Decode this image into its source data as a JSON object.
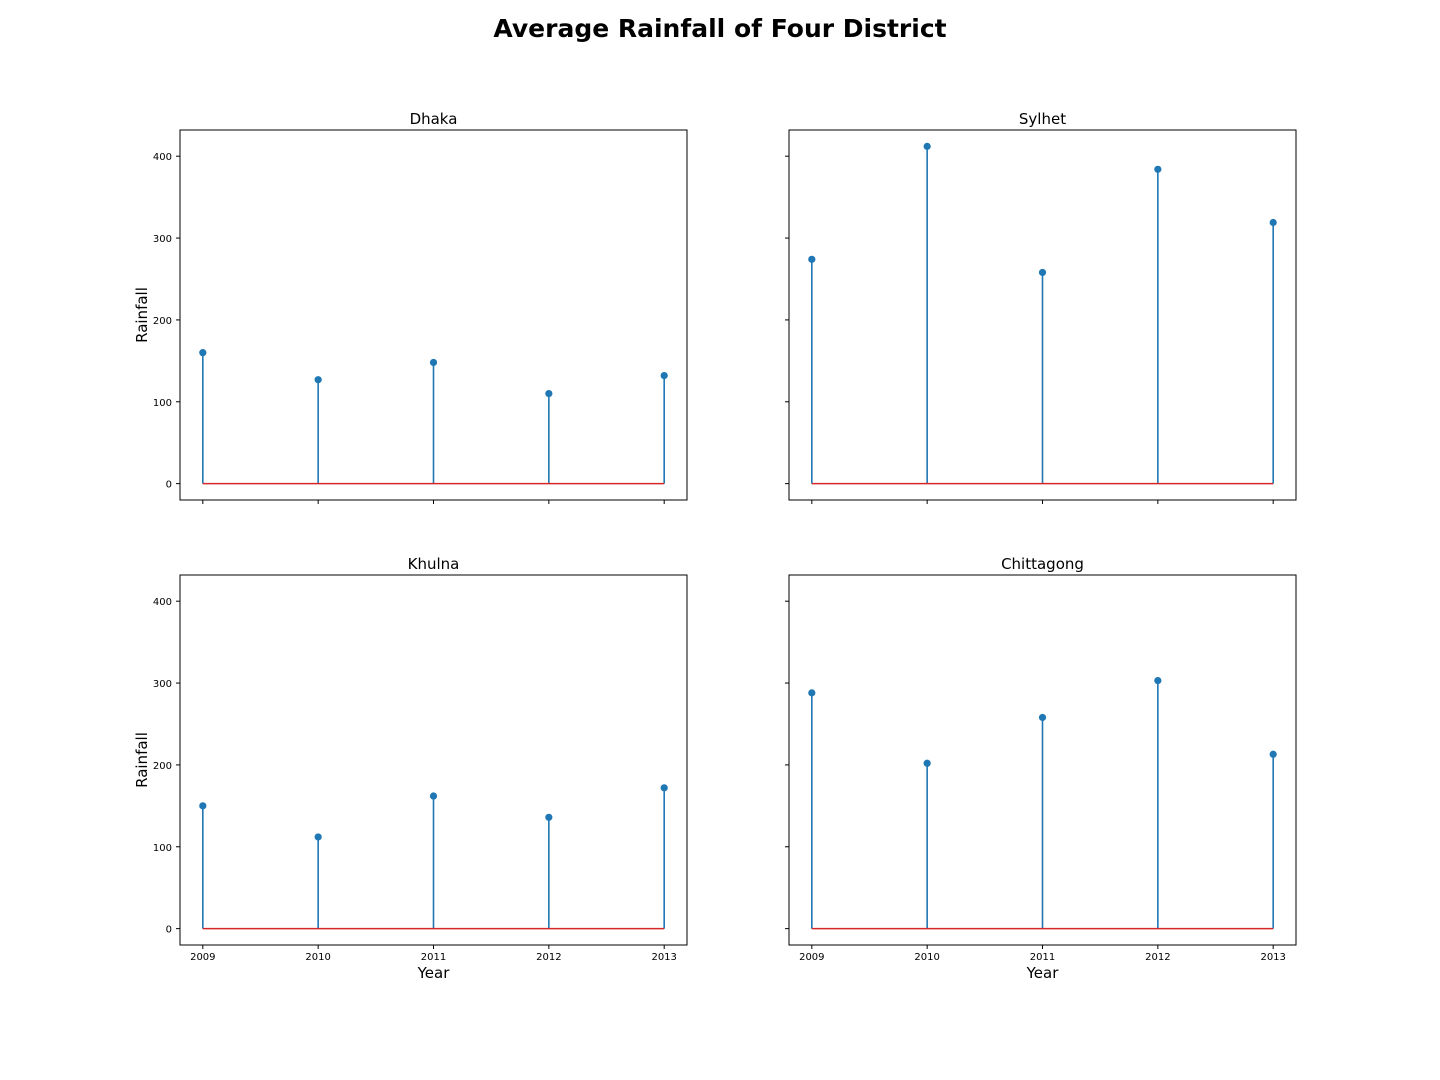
{
  "suptitle": "Average Rainfall of Four District",
  "chart_data": [
    {
      "type": "stem",
      "title": "Dhaka",
      "xlabel": "",
      "ylabel": "Rainfall",
      "x": [
        "2009",
        "2010",
        "2011",
        "2012",
        "2013"
      ],
      "values": [
        160,
        127,
        148,
        110,
        132
      ],
      "ylim": [
        -20,
        432
      ],
      "yticks": [
        0,
        100,
        200,
        300,
        400
      ],
      "show_xticklabels": false,
      "show_yticklabels": true
    },
    {
      "type": "stem",
      "title": "Sylhet",
      "xlabel": "",
      "ylabel": "",
      "x": [
        "2009",
        "2010",
        "2011",
        "2012",
        "2013"
      ],
      "values": [
        274,
        412,
        258,
        384,
        319
      ],
      "ylim": [
        -20,
        432
      ],
      "yticks": [
        0,
        100,
        200,
        300,
        400
      ],
      "show_xticklabels": false,
      "show_yticklabels": false
    },
    {
      "type": "stem",
      "title": "Khulna",
      "xlabel": "Year",
      "ylabel": "Rainfall",
      "x": [
        "2009",
        "2010",
        "2011",
        "2012",
        "2013"
      ],
      "values": [
        150,
        112,
        162,
        136,
        172
      ],
      "ylim": [
        -20,
        432
      ],
      "yticks": [
        0,
        100,
        200,
        300,
        400
      ],
      "show_xticklabels": true,
      "show_yticklabels": true
    },
    {
      "type": "stem",
      "title": "Chittagong",
      "xlabel": "Year",
      "ylabel": "",
      "x": [
        "2009",
        "2010",
        "2011",
        "2012",
        "2013"
      ],
      "values": [
        288,
        202,
        258,
        303,
        213
      ],
      "ylim": [
        -20,
        432
      ],
      "yticks": [
        0,
        100,
        200,
        300,
        400
      ],
      "show_xticklabels": true,
      "show_yticklabels": false
    }
  ],
  "colors": {
    "stem": "#1f77b4",
    "baseline": "#d62728",
    "axes": "#000000"
  }
}
